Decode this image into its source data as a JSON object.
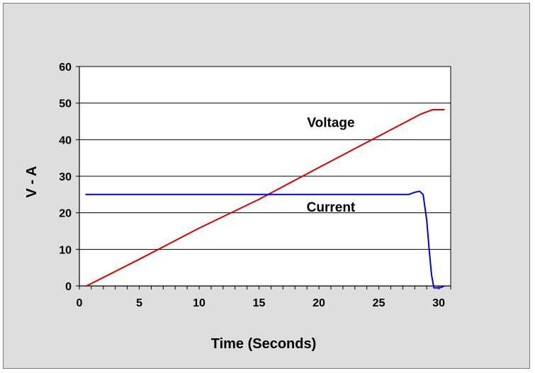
{
  "chart_data": {
    "type": "line",
    "title": "",
    "xlabel": "Time (Seconds)",
    "ylabel": "V - A",
    "xlim": [
      0,
      31
    ],
    "ylim": [
      0,
      60
    ],
    "x_ticks": [
      0,
      5,
      10,
      15,
      20,
      25,
      30
    ],
    "y_ticks": [
      0,
      10,
      20,
      30,
      40,
      50,
      60
    ],
    "grid": "horizontal",
    "legend": "inline labels",
    "series": [
      {
        "name": "Voltage",
        "color": "#cc0000",
        "points": [
          [
            0.6,
            0
          ],
          [
            5,
            7.3
          ],
          [
            10,
            15.8
          ],
          [
            15,
            23.7
          ],
          [
            20,
            32.4
          ],
          [
            25,
            41
          ],
          [
            28.5,
            47
          ],
          [
            29.5,
            48.2
          ],
          [
            30.5,
            48.2
          ]
        ]
      },
      {
        "name": "Current",
        "color": "#0000cc",
        "points": [
          [
            0.5,
            25
          ],
          [
            27.5,
            25
          ],
          [
            28,
            25.6
          ],
          [
            28.4,
            25.9
          ],
          [
            28.7,
            25
          ],
          [
            29,
            18
          ],
          [
            29.2,
            10
          ],
          [
            29.4,
            3
          ],
          [
            29.6,
            -0.5
          ],
          [
            30.1,
            -0.5
          ],
          [
            30.5,
            0
          ]
        ]
      }
    ]
  }
}
